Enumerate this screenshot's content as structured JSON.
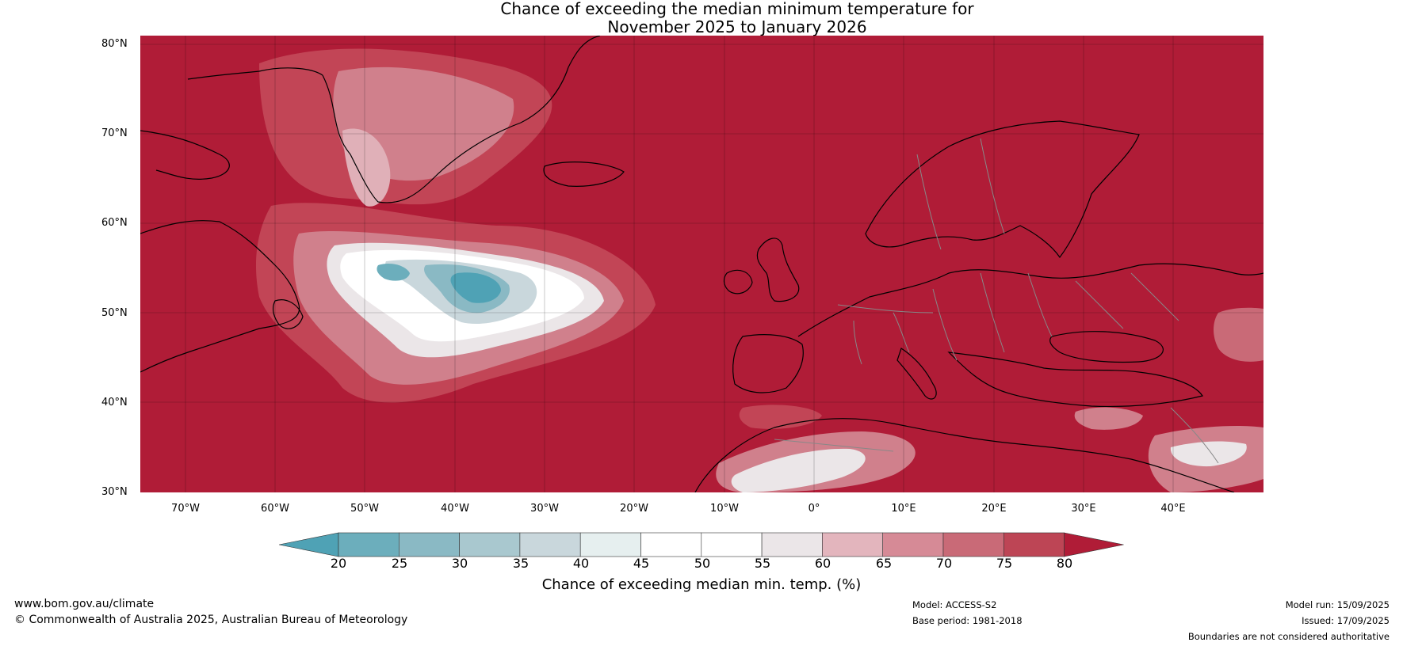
{
  "title": {
    "line1": "Chance of exceeding the median minimum temperature for",
    "line2": "November 2025 to January 2026"
  },
  "map": {
    "lat_ticks": [
      "80°N",
      "70°N",
      "60°N",
      "50°N",
      "40°N",
      "30°N"
    ],
    "lon_ticks": [
      "70°W",
      "60°W",
      "50°W",
      "40°W",
      "30°W",
      "20°W",
      "10°W",
      "0°",
      "10°E",
      "20°E",
      "30°E",
      "40°E"
    ],
    "base_color": "#b01c37",
    "land_outline_color": "#000000",
    "border_color": "#888888"
  },
  "colorbar": {
    "ticks": [
      "20",
      "25",
      "30",
      "35",
      "40",
      "45",
      "50",
      "55",
      "60",
      "65",
      "70",
      "75",
      "80"
    ],
    "colors": [
      "#4fa2b5",
      "#6caebc",
      "#8ab9c4",
      "#a9c8cf",
      "#c9d7dc",
      "#e6efef",
      "#ffffff",
      "#ffffff",
      "#ebe6e8",
      "#e3b5bd",
      "#d68a96",
      "#c96a77",
      "#bd4555",
      "#b01c37"
    ],
    "title": "Chance of exceeding median min. temp. (%)"
  },
  "footer": {
    "website": "www.bom.gov.au/climate",
    "copyright": "© Commonwealth of Australia 2025, Australian Bureau of Meteorology",
    "model": "Model: ACCESS-S2",
    "base_period": "Base period: 1981-2018",
    "model_run": "Model run: 15/09/2025",
    "issued": "Issued: 17/09/2025",
    "disclaimer": "Boundaries are not considered authoritative"
  }
}
